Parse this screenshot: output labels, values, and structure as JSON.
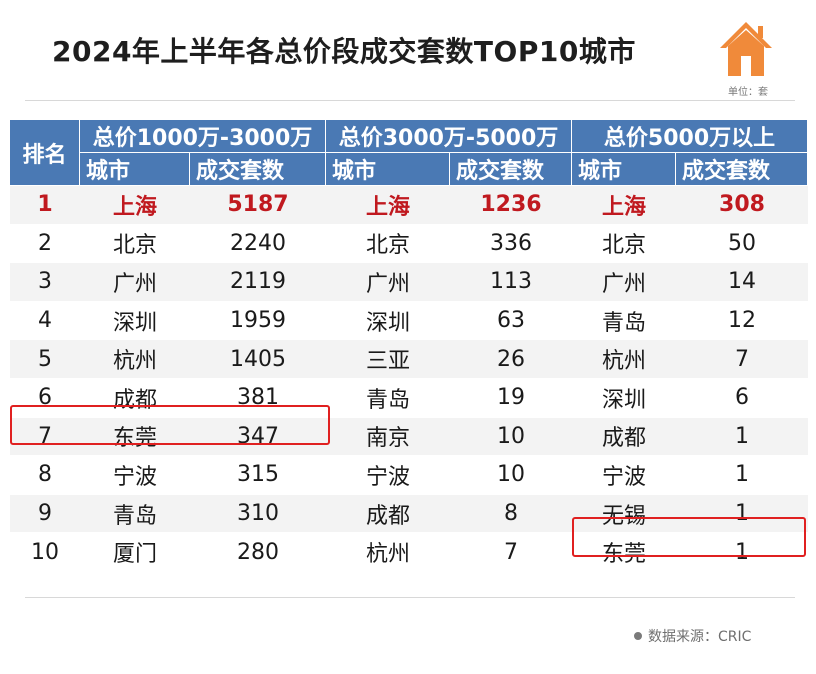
{
  "title": "2024年上半年各总价段成交套数TOP10城市",
  "unit": "单位：套",
  "source": "数据来源：CRIC",
  "colors": {
    "header_bg": "#4a79b4",
    "highlight_red": "#c0191f",
    "box_red": "#e02020",
    "house_orange": "#f08a3a"
  },
  "icons": {
    "logo": "house-icon"
  },
  "table": {
    "rank_header": "排名",
    "groups": [
      "总价1000万-3000万",
      "总价3000万-5000万",
      "总价5000万以上"
    ],
    "sub_headers": [
      "城市",
      "成交套数",
      "城市",
      "成交套数",
      "城市",
      "成交套数"
    ],
    "rows": [
      [
        "1",
        "上海",
        "5187",
        "上海",
        "1236",
        "上海",
        "308"
      ],
      [
        "2",
        "北京",
        "2240",
        "北京",
        "336",
        "北京",
        "50"
      ],
      [
        "3",
        "广州",
        "2119",
        "广州",
        "113",
        "广州",
        "14"
      ],
      [
        "4",
        "深圳",
        "1959",
        "深圳",
        "63",
        "青岛",
        "12"
      ],
      [
        "5",
        "杭州",
        "1405",
        "三亚",
        "26",
        "杭州",
        "7"
      ],
      [
        "6",
        "成都",
        "381",
        "青岛",
        "19",
        "深圳",
        "6"
      ],
      [
        "7",
        "东莞",
        "347",
        "南京",
        "10",
        "成都",
        "1"
      ],
      [
        "8",
        "宁波",
        "315",
        "宁波",
        "10",
        "宁波",
        "1"
      ],
      [
        "9",
        "青岛",
        "310",
        "成都",
        "8",
        "无锡",
        "1"
      ],
      [
        "10",
        "厦门",
        "280",
        "杭州",
        "7",
        "东莞",
        "1"
      ]
    ]
  },
  "chart_data": {
    "type": "table",
    "title": "2024年上半年各总价段成交套数TOP10城市",
    "unit": "单位：套",
    "columns": [
      "排名",
      "城市",
      "成交套数",
      "城市",
      "成交套数",
      "城市",
      "成交套数"
    ],
    "column_groups": [
      "总价1000万-3000万",
      "总价3000万-5000万",
      "总价5000万以上"
    ],
    "series": [
      {
        "name": "总价1000万-3000万",
        "categories": [
          "上海",
          "北京",
          "广州",
          "深圳",
          "杭州",
          "成都",
          "东莞",
          "宁波",
          "青岛",
          "厦门"
        ],
        "values": [
          5187,
          2240,
          2119,
          1959,
          1405,
          381,
          347,
          315,
          310,
          280
        ]
      },
      {
        "name": "总价3000万-5000万",
        "categories": [
          "上海",
          "北京",
          "广州",
          "深圳",
          "三亚",
          "青岛",
          "南京",
          "宁波",
          "成都",
          "杭州"
        ],
        "values": [
          1236,
          336,
          113,
          63,
          26,
          19,
          10,
          10,
          8,
          7
        ]
      },
      {
        "name": "总价5000万以上",
        "categories": [
          "上海",
          "北京",
          "广州",
          "青岛",
          "杭州",
          "深圳",
          "成都",
          "宁波",
          "无锡",
          "东莞"
        ],
        "values": [
          308,
          50,
          14,
          12,
          7,
          6,
          1,
          1,
          1,
          1
        ]
      }
    ],
    "highlighted": [
      {
        "group": "总价1000万-3000万",
        "rank": 7,
        "city": "东莞"
      },
      {
        "group": "总价5000万以上",
        "rank": 10,
        "city": "东莞"
      }
    ],
    "source": "数据来源：CRIC"
  }
}
